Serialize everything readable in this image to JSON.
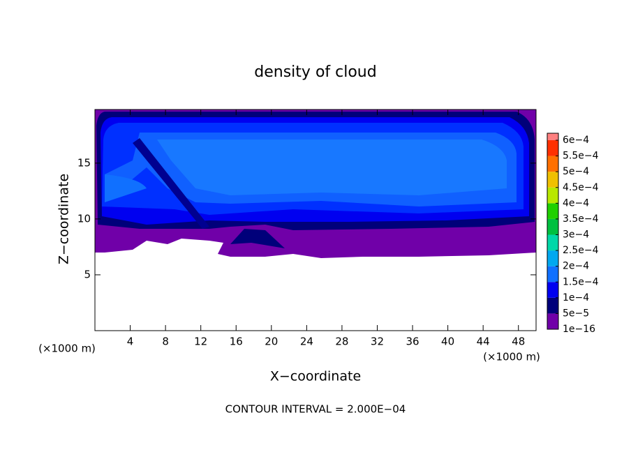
{
  "chart_data": {
    "type": "contour",
    "title": "density of cloud",
    "xlabel": "X−coordinate",
    "ylabel": "Z−coordinate",
    "xunit": "(×1000 m)",
    "yunit": "(×1000 m)",
    "footnote": "CONTOUR INTERVAL = 2.000E−04",
    "xlim": [
      0,
      50
    ],
    "ylim": [
      0,
      19.8
    ],
    "xticks": [
      4,
      8,
      12,
      16,
      20,
      24,
      28,
      32,
      36,
      40,
      44,
      48
    ],
    "yticks": [
      5,
      10,
      15
    ],
    "colorbar": {
      "ticks": [
        {
          "value": 1e-16,
          "label": "1e−16"
        },
        {
          "value": 5e-05,
          "label": "5e−5"
        },
        {
          "value": 0.0001,
          "label": "1e−4"
        },
        {
          "value": 0.00015,
          "label": "1.5e−4"
        },
        {
          "value": 0.0002,
          "label": "2e−4"
        },
        {
          "value": 0.00025,
          "label": "2.5e−4"
        },
        {
          "value": 0.0003,
          "label": "3e−4"
        },
        {
          "value": 0.00035,
          "label": "3.5e−4"
        },
        {
          "value": 0.0004,
          "label": "4e−4"
        },
        {
          "value": 0.00045,
          "label": "4.5e−4"
        },
        {
          "value": 0.0005,
          "label": "5e−4"
        },
        {
          "value": 0.00055,
          "label": "5.5e−4"
        },
        {
          "value": 0.0006,
          "label": "6e−4"
        }
      ],
      "colors": [
        "#7000a8",
        "#00007a",
        "#0000f0",
        "#1070ff",
        "#00a8f0",
        "#00d8a8",
        "#00c040",
        "#20d000",
        "#b8e800",
        "#f0c000",
        "#ff7000",
        "#ff3000"
      ],
      "top_color": "#ff8080"
    }
  }
}
